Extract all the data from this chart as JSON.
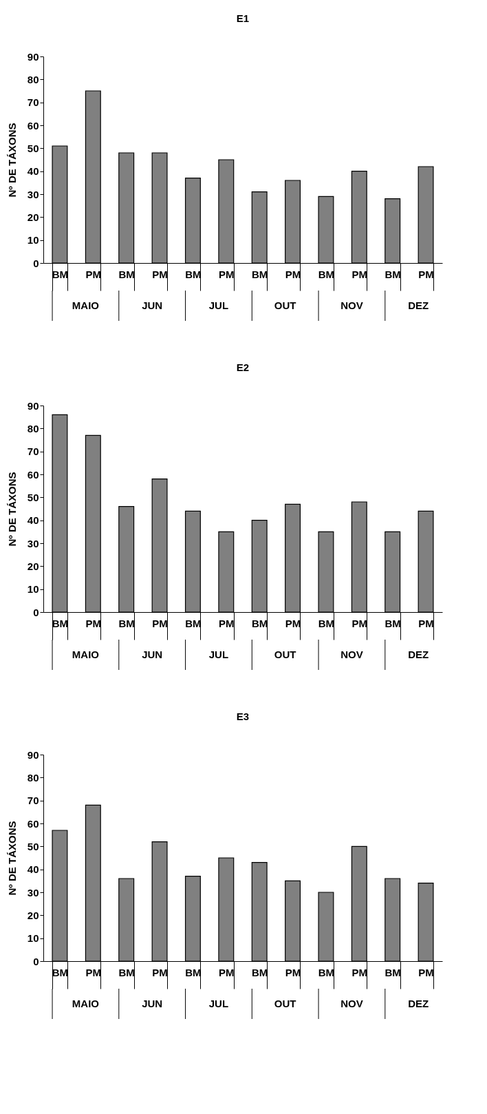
{
  "chart_data": [
    {
      "type": "bar",
      "title": "E1",
      "ylabel": "Nº DE TÁXONS",
      "categories": [
        "BM",
        "PM",
        "BM",
        "PM",
        "BM",
        "PM",
        "BM",
        "PM",
        "BM",
        "PM",
        "BM",
        "PM"
      ],
      "values": [
        51,
        75,
        48,
        48,
        37,
        45,
        31,
        36,
        29,
        40,
        28,
        42
      ],
      "color": "#808080",
      "ylim": [
        0,
        90
      ],
      "yticks": [
        0,
        10,
        20,
        30,
        40,
        50,
        60,
        70,
        80,
        90
      ],
      "grid": false,
      "annotations": [
        "MAIO",
        "JUN",
        "JUL",
        "OUT",
        "NOV",
        "DEZ"
      ]
    },
    {
      "type": "bar",
      "title": "E2",
      "ylabel": "Nº DE TÁXONS",
      "categories": [
        "BM",
        "PM",
        "BM",
        "PM",
        "BM",
        "PM",
        "BM",
        "PM",
        "BM",
        "PM",
        "BM",
        "PM"
      ],
      "values": [
        86,
        77,
        46,
        58,
        44,
        35,
        40,
        47,
        35,
        48,
        35,
        44
      ],
      "color": "#808080",
      "ylim": [
        0,
        90
      ],
      "yticks": [
        0,
        10,
        20,
        30,
        40,
        50,
        60,
        70,
        80,
        90
      ],
      "grid": false,
      "annotations": [
        "MAIO",
        "JUN",
        "JUL",
        "OUT",
        "NOV",
        "DEZ"
      ]
    },
    {
      "type": "bar",
      "title": "E3",
      "ylabel": "Nº DE TÁXONS",
      "categories": [
        "BM",
        "PM",
        "BM",
        "PM",
        "BM",
        "PM",
        "BM",
        "PM",
        "BM",
        "PM",
        "BM",
        "PM"
      ],
      "values": [
        57,
        68,
        36,
        52,
        37,
        45,
        43,
        35,
        30,
        50,
        36,
        34
      ],
      "color": "#808080",
      "ylim": [
        0,
        90
      ],
      "yticks": [
        0,
        10,
        20,
        30,
        40,
        50,
        60,
        70,
        80,
        90
      ],
      "grid": false,
      "annotations": [
        "MAIO",
        "JUN",
        "JUL",
        "OUT",
        "NOV",
        "DEZ"
      ]
    }
  ]
}
